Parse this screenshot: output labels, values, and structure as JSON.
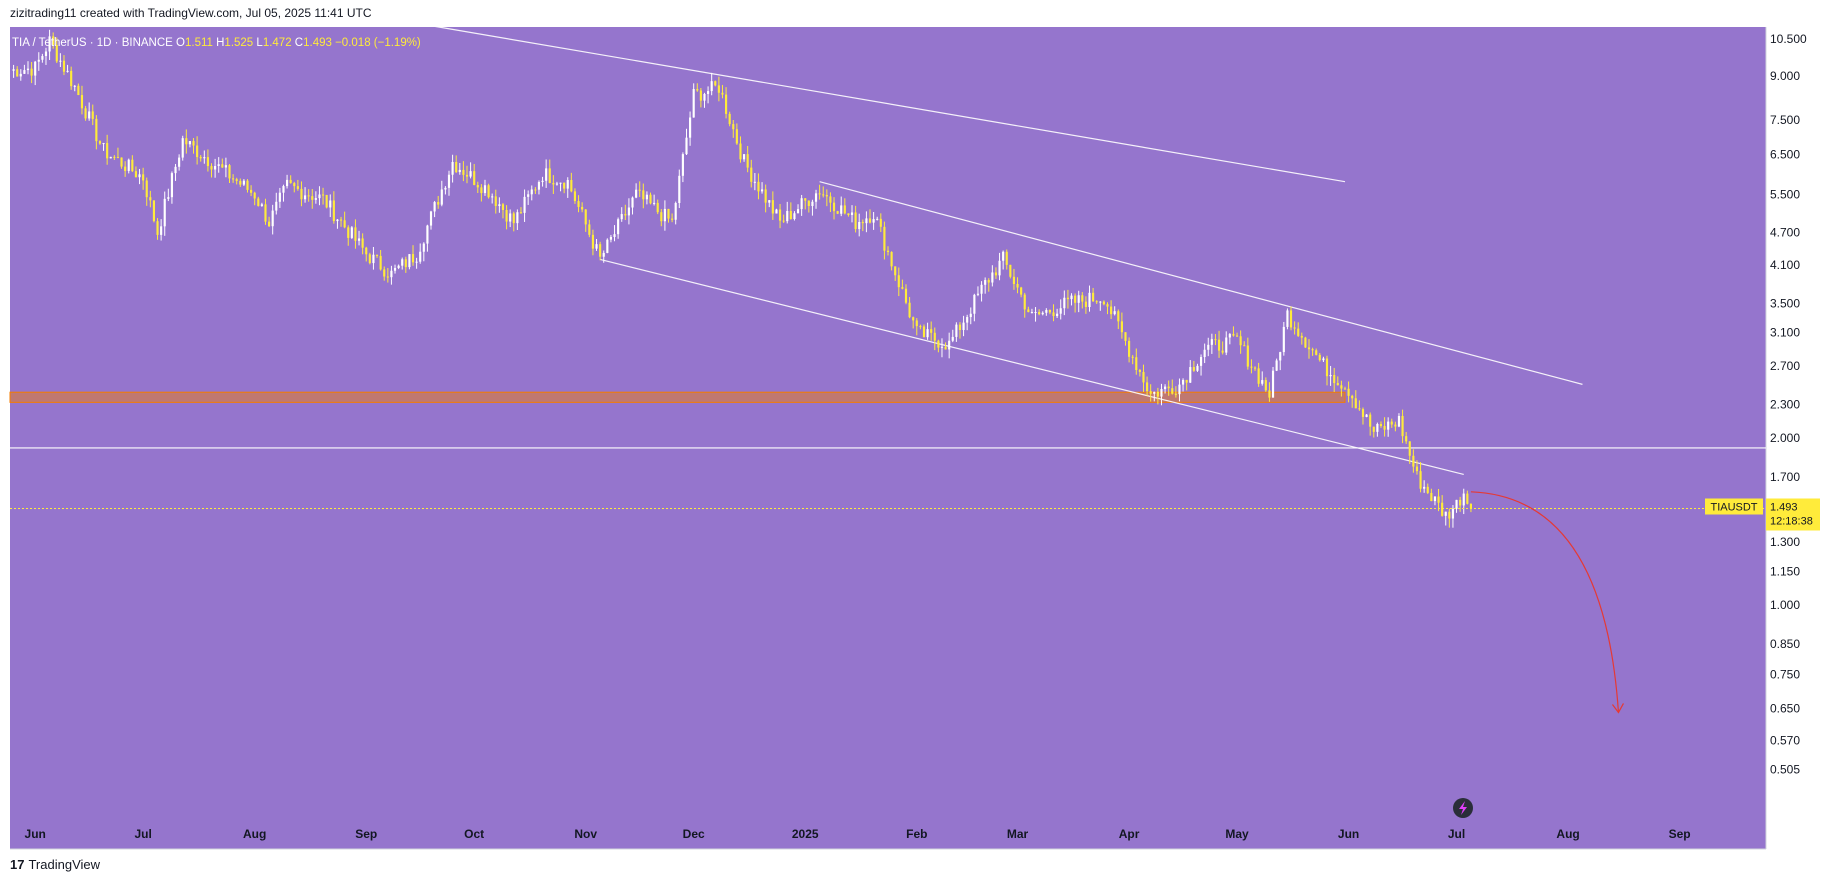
{
  "header": {
    "text": "zizitrading11 created with TradingView.com, Jul 05, 2025 11:41 UTC"
  },
  "footer": {
    "logo": "17",
    "brand": "TradingView"
  },
  "colors": {
    "background": "#9575cd",
    "candle_up": "#ffffff",
    "candle_down": "#ffeb3b",
    "zone": "#f57c00",
    "arrow": "#e53935"
  },
  "legend": {
    "symbol": "TIA / TetherUS · 1D · BINANCE",
    "o_label": "O",
    "o": "1.511",
    "h_label": "H",
    "h": "1.525",
    "l_label": "L",
    "l": "1.472",
    "c_label": "C",
    "c": "1.493",
    "change": "−0.018 (−1.19%)"
  },
  "price_badge": {
    "ticker": "TIAUSDT",
    "price": "1.493",
    "countdown": "12:18:38"
  },
  "chart_data": {
    "type": "candlestick",
    "title": "TIA / TetherUS · 1D · BINANCE",
    "y_scale": "log",
    "ylim": [
      0.46,
      10.8
    ],
    "y_ticks": [
      "10.500",
      "9.000",
      "7.500",
      "6.500",
      "5.500",
      "4.700",
      "4.100",
      "3.500",
      "3.100",
      "2.700",
      "2.300",
      "2.000",
      "1.700",
      "1.300",
      "1.150",
      "1.000",
      "0.850",
      "0.750",
      "0.650",
      "0.570",
      "0.505"
    ],
    "x_ticks": [
      "Jun",
      "Jul",
      "Aug",
      "Sep",
      "Oct",
      "Nov",
      "Dec",
      "2025",
      "Feb",
      "Mar",
      "Apr",
      "May",
      "Jun",
      "Jul",
      "Aug",
      "Sep"
    ],
    "x_range": [
      "2024-05-25",
      "2025-09-25"
    ],
    "last_price": 1.493,
    "price_anchors": [
      [
        "2024-05-25",
        9.2
      ],
      [
        "2024-06-01",
        9.3
      ],
      [
        "2024-06-05",
        10.4
      ],
      [
        "2024-06-12",
        8.6
      ],
      [
        "2024-06-20",
        6.6
      ],
      [
        "2024-07-01",
        5.9
      ],
      [
        "2024-07-05",
        4.7
      ],
      [
        "2024-07-12",
        6.9
      ],
      [
        "2024-07-20",
        6.3
      ],
      [
        "2024-08-01",
        5.5
      ],
      [
        "2024-08-05",
        4.9
      ],
      [
        "2024-08-10",
        5.7
      ],
      [
        "2024-08-20",
        5.4
      ],
      [
        "2024-09-01",
        4.3
      ],
      [
        "2024-09-08",
        3.95
      ],
      [
        "2024-09-15",
        4.3
      ],
      [
        "2024-09-25",
        6.3
      ],
      [
        "2024-10-05",
        5.6
      ],
      [
        "2024-10-12",
        4.9
      ],
      [
        "2024-10-20",
        6.0
      ],
      [
        "2024-10-27",
        5.8
      ],
      [
        "2024-11-05",
        4.2
      ],
      [
        "2024-11-15",
        5.5
      ],
      [
        "2024-11-25",
        4.9
      ],
      [
        "2024-12-01",
        8.3
      ],
      [
        "2024-12-08",
        8.6
      ],
      [
        "2024-12-15",
        6.3
      ],
      [
        "2024-12-25",
        4.9
      ],
      [
        "2025-01-05",
        5.6
      ],
      [
        "2025-01-15",
        4.9
      ],
      [
        "2025-01-20",
        5.1
      ],
      [
        "2025-02-01",
        3.1
      ],
      [
        "2025-02-10",
        2.95
      ],
      [
        "2025-02-20",
        3.8
      ],
      [
        "2025-02-25",
        4.2
      ],
      [
        "2025-03-05",
        3.3
      ],
      [
        "2025-03-15",
        3.5
      ],
      [
        "2025-03-25",
        3.6
      ],
      [
        "2025-04-07",
        2.4
      ],
      [
        "2025-04-15",
        2.5
      ],
      [
        "2025-04-22",
        2.9
      ],
      [
        "2025-05-01",
        3.0
      ],
      [
        "2025-05-10",
        2.4
      ],
      [
        "2025-05-15",
        3.35
      ],
      [
        "2025-05-25",
        2.7
      ],
      [
        "2025-06-01",
        2.45
      ],
      [
        "2025-06-08",
        2.05
      ],
      [
        "2025-06-15",
        2.15
      ],
      [
        "2025-06-20",
        1.7
      ],
      [
        "2025-06-28",
        1.45
      ],
      [
        "2025-07-01",
        1.52
      ],
      [
        "2025-07-03",
        1.6
      ],
      [
        "2025-07-05",
        1.493
      ]
    ],
    "support_zone": {
      "from": "2024-05-25",
      "to": "2025-05-31",
      "price_low": 2.32,
      "price_high": 2.42
    },
    "horizontal_line": {
      "price": 1.92
    },
    "trendlines": [
      {
        "from": [
          "2024-09-15",
          11.2
        ],
        "to": [
          "2025-05-31",
          5.8
        ]
      },
      {
        "from": [
          "2025-01-05",
          5.8
        ],
        "to": [
          "2025-08-05",
          2.5
        ]
      },
      {
        "from": [
          "2024-11-05",
          4.2
        ],
        "to": [
          "2025-07-03",
          1.72
        ]
      }
    ],
    "projection_arrow": {
      "from": [
        "2025-07-05",
        1.6
      ],
      "to": [
        "2025-08-15",
        0.64
      ]
    }
  }
}
